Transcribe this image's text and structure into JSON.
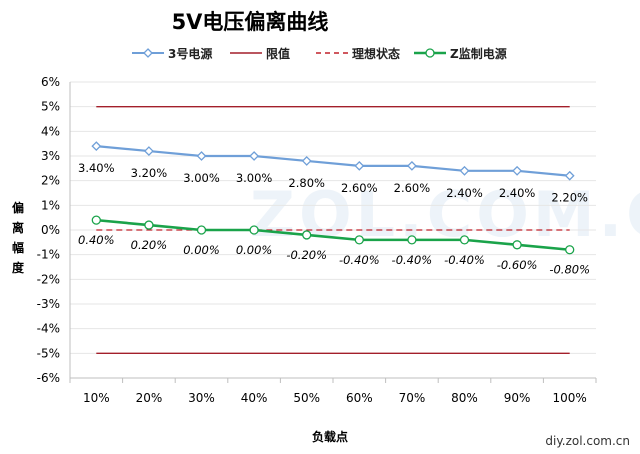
{
  "chart_data": {
    "type": "line",
    "title": "5V电压偏离曲线",
    "xlabel": "负载点",
    "ylabel": "偏离幅度",
    "categories": [
      "10%",
      "20%",
      "30%",
      "40%",
      "50%",
      "60%",
      "70%",
      "80%",
      "90%",
      "100%"
    ],
    "y_ticks": [
      "6%",
      "5%",
      "4%",
      "3%",
      "2%",
      "1%",
      "0%",
      "-1%",
      "-2%",
      "-3%",
      "-4%",
      "-5%",
      "-6%"
    ],
    "ylim": [
      -6,
      6
    ],
    "grid": true,
    "legend_position": "top",
    "series": [
      {
        "name": "3号电源",
        "values": [
          3.4,
          3.2,
          3.0,
          3.0,
          2.8,
          2.6,
          2.6,
          2.4,
          2.4,
          2.2
        ],
        "labels": [
          "3.40%",
          "3.20%",
          "3.00%",
          "3.00%",
          "2.80%",
          "2.60%",
          "2.60%",
          "2.40%",
          "2.40%",
          "2.20%"
        ],
        "color": "#6f9fd8",
        "style": "line-diamond"
      },
      {
        "name": "限值",
        "values_upper": [
          5,
          5,
          5,
          5,
          5,
          5,
          5,
          5,
          5,
          5
        ],
        "values_lower": [
          -5,
          -5,
          -5,
          -5,
          -5,
          -5,
          -5,
          -5,
          -5,
          -5
        ],
        "color": "#a31f2a",
        "style": "solid"
      },
      {
        "name": "理想状态",
        "values": [
          0,
          0,
          0,
          0,
          0,
          0,
          0,
          0,
          0,
          0
        ],
        "color": "#c0202a",
        "style": "dashed"
      },
      {
        "name": "Z监制电源",
        "values": [
          0.4,
          0.2,
          0.0,
          0.0,
          -0.2,
          -0.4,
          -0.4,
          -0.4,
          -0.6,
          -0.8
        ],
        "labels": [
          "0.40%",
          "0.20%",
          "0.00%",
          "0.00%",
          "-0.20%",
          "-0.40%",
          "-0.40%",
          "-0.40%",
          "-0.60%",
          "-0.80%"
        ],
        "color": "#1aa34a",
        "style": "line-circle"
      }
    ]
  },
  "source": "diy.zol.com.cn",
  "watermark": "ZOL.COM.CN"
}
